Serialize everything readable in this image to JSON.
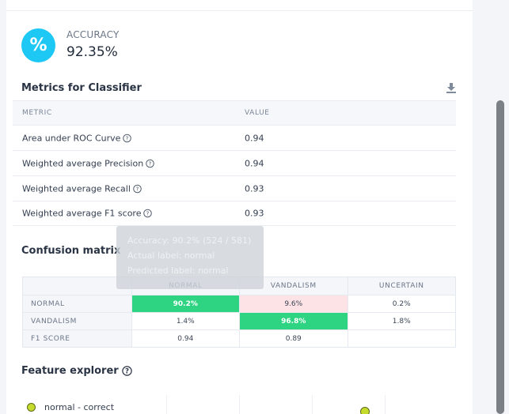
{
  "accuracy": {
    "icon": "percent-icon",
    "icon_glyph": "%",
    "label": "ACCURACY",
    "value": "92.35%"
  },
  "metrics": {
    "title": "Metrics for Classifier",
    "download_icon": "download-icon",
    "col_metric": "METRIC",
    "col_value": "VALUE",
    "rows": [
      {
        "name": "Area under ROC Curve",
        "value": "0.94"
      },
      {
        "name": "Weighted average Precision",
        "value": "0.94"
      },
      {
        "name": "Weighted average Recall",
        "value": "0.93"
      },
      {
        "name": "Weighted average F1 score",
        "value": "0.93"
      }
    ]
  },
  "confusion": {
    "title": "Confusion matrix",
    "columns": [
      "NORMAL",
      "VANDALISM",
      "UNCERTAIN"
    ],
    "rows": [
      {
        "label": "NORMAL",
        "cells": [
          "90.2%",
          "9.6%",
          "0.2%"
        ]
      },
      {
        "label": "VANDALISM",
        "cells": [
          "1.4%",
          "96.8%",
          "1.8%"
        ]
      },
      {
        "label": "F1 SCORE",
        "cells": [
          "0.94",
          "0.89",
          ""
        ]
      }
    ],
    "colors": {
      "correct": "#2ed482",
      "misclassified": "#fde3e6",
      "neutral": "#ffffff"
    },
    "tooltip": {
      "line1": "Accuracy: 90.2% (524 / 581)",
      "line2": "Actual label: normal",
      "line3": "Predicted label: normal"
    }
  },
  "feature_explorer": {
    "title": "Feature explorer",
    "legend": [
      {
        "label": "normal - correct",
        "color": "#c6dc2c"
      }
    ]
  }
}
